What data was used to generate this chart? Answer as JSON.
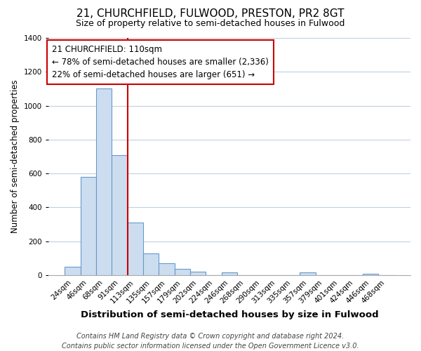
{
  "title": "21, CHURCHFIELD, FULWOOD, PRESTON, PR2 8GT",
  "subtitle": "Size of property relative to semi-detached houses in Fulwood",
  "xlabel": "Distribution of semi-detached houses by size in Fulwood",
  "ylabel": "Number of semi-detached properties",
  "bar_labels": [
    "24sqm",
    "46sqm",
    "68sqm",
    "91sqm",
    "113sqm",
    "135sqm",
    "157sqm",
    "179sqm",
    "202sqm",
    "224sqm",
    "246sqm",
    "268sqm",
    "290sqm",
    "313sqm",
    "335sqm",
    "357sqm",
    "379sqm",
    "401sqm",
    "424sqm",
    "446sqm",
    "468sqm"
  ],
  "bar_values": [
    50,
    580,
    1100,
    710,
    310,
    130,
    70,
    35,
    20,
    0,
    15,
    0,
    0,
    0,
    0,
    15,
    0,
    0,
    0,
    10,
    0
  ],
  "bar_color": "#ccddf0",
  "bar_edge_color": "#6699cc",
  "vline_color": "#cc0000",
  "vline_position": 3.5,
  "ylim": [
    0,
    1400
  ],
  "yticks": [
    0,
    200,
    400,
    600,
    800,
    1000,
    1200,
    1400
  ],
  "annotation_title": "21 CHURCHFIELD: 110sqm",
  "annotation_line1": "← 78% of semi-detached houses are smaller (2,336)",
  "annotation_line2": "22% of semi-detached houses are larger (651) →",
  "footer_line1": "Contains HM Land Registry data © Crown copyright and database right 2024.",
  "footer_line2": "Contains public sector information licensed under the Open Government Licence v3.0.",
  "background_color": "#ffffff",
  "grid_color": "#c0d0e0",
  "title_fontsize": 11,
  "subtitle_fontsize": 9,
  "xlabel_fontsize": 9.5,
  "ylabel_fontsize": 8.5,
  "tick_fontsize": 7.5,
  "annotation_title_fontsize": 9,
  "annotation_fontsize": 8.5,
  "footer_fontsize": 7
}
